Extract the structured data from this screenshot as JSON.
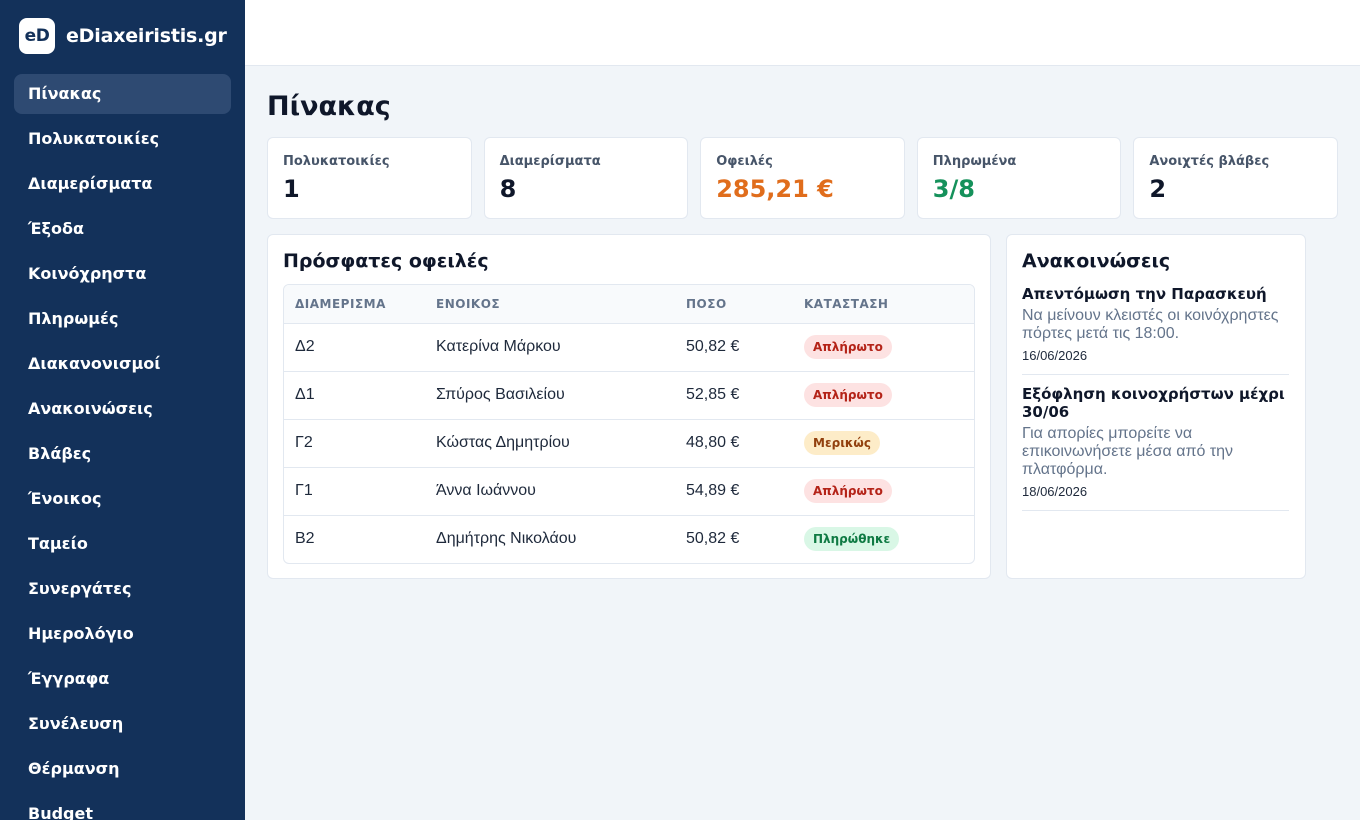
{
  "brand": {
    "logo_text": "eD",
    "name": "eDiaxeiristis.gr"
  },
  "sidebar": {
    "items": [
      {
        "label": "Πίνακας",
        "active": true
      },
      {
        "label": "Πολυκατοικίες"
      },
      {
        "label": "Διαμερίσματα"
      },
      {
        "label": "Έξοδα"
      },
      {
        "label": "Κοινόχρηστα"
      },
      {
        "label": "Πληρωμές"
      },
      {
        "label": "Διακανονισμοί"
      },
      {
        "label": "Ανακοινώσεις"
      },
      {
        "label": "Βλάβες"
      },
      {
        "label": "Ένοικος"
      },
      {
        "label": "Ταμείο"
      },
      {
        "label": "Συνεργάτες"
      },
      {
        "label": "Ημερολόγιο"
      },
      {
        "label": "Έγγραφα"
      },
      {
        "label": "Συνέλευση"
      },
      {
        "label": "Θέρμανση"
      },
      {
        "label": "Budget"
      }
    ]
  },
  "page": {
    "title": "Πίνακας"
  },
  "stats": [
    {
      "label": "Πολυκατοικίες",
      "value": "1",
      "color": "#0f172a"
    },
    {
      "label": "Διαμερίσματα",
      "value": "8",
      "color": "#0f172a"
    },
    {
      "label": "Οφειλές",
      "value": "285,21 €",
      "color": "#e06d1c"
    },
    {
      "label": "Πληρωμένα",
      "value": "3/8",
      "color": "#15915b"
    },
    {
      "label": "Ανοιχτές βλάβες",
      "value": "2",
      "color": "#0f172a"
    }
  ],
  "debts": {
    "title": "Πρόσφατες οφειλές",
    "headers": [
      "ΔΙΑΜΕΡΙΣΜΑ",
      "ΕΝΟΙΚΟΣ",
      "ΠΟΣΟ",
      "ΚΑΤΑΣΤΑΣΗ"
    ],
    "rows": [
      {
        "apartment": "Δ2",
        "tenant": "Κατερίνα Μάρκου",
        "amount": "50,82 €",
        "status": "Απλήρωτο",
        "status_type": "unpaid"
      },
      {
        "apartment": "Δ1",
        "tenant": "Σπύρος Βασιλείου",
        "amount": "52,85 €",
        "status": "Απλήρωτο",
        "status_type": "unpaid"
      },
      {
        "apartment": "Γ2",
        "tenant": "Κώστας Δημητρίου",
        "amount": "48,80 €",
        "status": "Μερικώς",
        "status_type": "partial"
      },
      {
        "apartment": "Γ1",
        "tenant": "Άννα Ιωάννου",
        "amount": "54,89 €",
        "status": "Απλήρωτο",
        "status_type": "unpaid"
      },
      {
        "apartment": "Β2",
        "tenant": "Δημήτρης Νικολάου",
        "amount": "50,82 €",
        "status": "Πληρώθηκε",
        "status_type": "paid"
      }
    ]
  },
  "announcements": {
    "title": "Ανακοινώσεις",
    "items": [
      {
        "title": "Απεντόμωση την Παρασκευή",
        "body": "Να μείνουν κλειστές οι κοινόχρηστες πόρτες μετά τις 18:00.",
        "date": "16/06/2026"
      },
      {
        "title": "Εξόφληση κοινοχρήστων μέχρι 30/06",
        "body": "Για απορίες μπορείτε να επικοινωνήσετε μέσα από την πλατφόρμα.",
        "date": "18/06/2026"
      }
    ]
  }
}
